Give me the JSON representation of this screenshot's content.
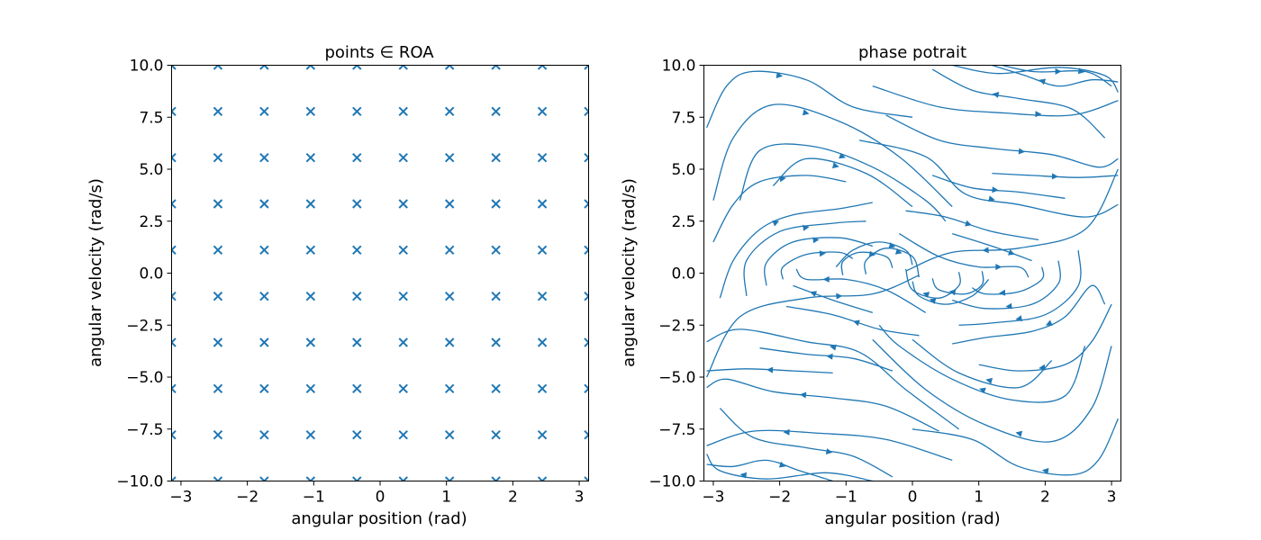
{
  "figure": {
    "background": "#ffffff"
  },
  "chart_data": [
    {
      "type": "scatter",
      "title": "points ∈ ROA",
      "xlabel": "angular position (rad)",
      "ylabel": "angular velocity (rad/s)",
      "xlim": [
        -3.1416,
        3.1416
      ],
      "ylim": [
        -10,
        10
      ],
      "xticks": [
        -3,
        -2,
        -1,
        0,
        1,
        2,
        3
      ],
      "xtick_labels": [
        "−3",
        "−2",
        "−1",
        "0",
        "1",
        "2",
        "3"
      ],
      "yticks": [
        10,
        7.5,
        5,
        2.5,
        0,
        -2.5,
        -5,
        -7.5,
        -10
      ],
      "ytick_labels": [
        "10.0",
        "7.5",
        "5.0",
        "2.5",
        "0.0",
        "−2.5",
        "−5.0",
        "−7.5",
        "−10.0"
      ],
      "marker": "x",
      "color": "#1f77b4",
      "grid": false,
      "x_grid": [
        -3.1416,
        -2.4435,
        -1.7453,
        -1.0472,
        -0.3491,
        0.3491,
        1.0472,
        1.7453,
        2.4435,
        3.1416
      ],
      "y_grid": [
        -10,
        -7.7778,
        -5.5556,
        -3.3333,
        -1.1111,
        1.1111,
        3.3333,
        5.5556,
        7.7778,
        10
      ]
    },
    {
      "type": "streamplot",
      "title": "phase potrait",
      "xlabel": "angular position (rad)",
      "ylabel": "angular velocity (rad/s)",
      "xlim": [
        -3.1416,
        3.1416
      ],
      "ylim": [
        -10,
        10
      ],
      "xticks": [
        -3,
        -2,
        -1,
        0,
        1,
        2,
        3
      ],
      "xtick_labels": [
        "−3",
        "−2",
        "−1",
        "0",
        "1",
        "2",
        "3"
      ],
      "yticks": [
        10,
        7.5,
        5,
        2.5,
        0,
        -2.5,
        -5,
        -7.5,
        -10
      ],
      "ytick_labels": [
        "10.0",
        "7.5",
        "5.0",
        "2.5",
        "0.0",
        "−2.5",
        "−5.0",
        "−7.5",
        "−10.0"
      ],
      "color": "#1f77b4",
      "grid": false,
      "streamlines": [
        [
          [
            -3.1,
            -5
          ],
          [
            -2.6,
            -2.1
          ],
          [
            -1.6,
            -1.2
          ],
          [
            -0.6,
            -1
          ],
          [
            0.1,
            -0.1
          ]
        ],
        [
          [
            3.1,
            5
          ],
          [
            2.6,
            2.1
          ],
          [
            1.6,
            1.2
          ],
          [
            0.6,
            1
          ],
          [
            -0.1,
            0.1
          ]
        ],
        [
          [
            -3.0,
            1.5
          ],
          [
            -2.7,
            3.3
          ],
          [
            -2.3,
            4.4
          ],
          [
            -1.6,
            4.7
          ],
          [
            -1.0,
            4.4
          ]
        ],
        [
          [
            -2.9,
            -1.2
          ],
          [
            -2.7,
            0.6
          ],
          [
            -2.3,
            2.1
          ],
          [
            -1.8,
            2.8
          ],
          [
            -1.1,
            3.1
          ],
          [
            -0.6,
            3.4
          ]
        ],
        [
          [
            -2.5,
            -1.1
          ],
          [
            -2.5,
            0.6
          ],
          [
            -2.0,
            2.0
          ],
          [
            -1.2,
            2.4
          ],
          [
            -0.7,
            2.5
          ]
        ],
        [
          [
            -2.2,
            -0.6
          ],
          [
            -2.2,
            0.5
          ],
          [
            -1.8,
            1.5
          ],
          [
            -1.1,
            1.7
          ],
          [
            -0.6,
            1.3
          ]
        ],
        [
          [
            -1.95,
            -0.3
          ],
          [
            -1.95,
            0.3
          ],
          [
            -1.6,
            0.9
          ],
          [
            -1.1,
            1.0
          ],
          [
            -0.9,
            0.7
          ]
        ],
        [
          [
            -1.05,
            -0.1
          ],
          [
            -1.05,
            0.55
          ],
          [
            -0.8,
            1.0
          ],
          [
            -0.4,
            0.8
          ],
          [
            -0.3,
            0.25
          ]
        ],
        [
          [
            -0.7,
            -0.05
          ],
          [
            -0.7,
            0.6
          ],
          [
            -0.4,
            1.2
          ],
          [
            0.0,
            0.8
          ],
          [
            0.1,
            -0.2
          ]
        ],
        [
          [
            -1.15,
            0.3
          ],
          [
            -0.9,
            1.1
          ],
          [
            -0.5,
            1.5
          ],
          [
            -0.1,
            1.1
          ],
          [
            0.0,
            0.4
          ]
        ],
        [
          [
            2.9,
            -1.5
          ],
          [
            2.7,
            -0.6
          ],
          [
            2.3,
            -2.1
          ],
          [
            1.8,
            -2.8
          ],
          [
            1.1,
            -3.1
          ],
          [
            0.6,
            -3.4
          ]
        ],
        [
          [
            2.5,
            1.1
          ],
          [
            2.5,
            -0.6
          ],
          [
            2.0,
            -2.0
          ],
          [
            1.2,
            -2.4
          ],
          [
            0.7,
            -2.5
          ]
        ],
        [
          [
            2.2,
            0.6
          ],
          [
            2.2,
            -0.5
          ],
          [
            1.8,
            -1.5
          ],
          [
            1.1,
            -1.7
          ],
          [
            0.6,
            -1.3
          ]
        ],
        [
          [
            1.95,
            0.3
          ],
          [
            1.95,
            -0.3
          ],
          [
            1.6,
            -0.9
          ],
          [
            1.1,
            -1.0
          ],
          [
            0.9,
            -0.7
          ]
        ],
        [
          [
            1.05,
            0.1
          ],
          [
            1.05,
            -0.55
          ],
          [
            0.8,
            -1.0
          ],
          [
            0.4,
            -0.8
          ],
          [
            0.3,
            -0.25
          ]
        ],
        [
          [
            0.7,
            0.05
          ],
          [
            0.7,
            -0.6
          ],
          [
            0.4,
            -1.2
          ],
          [
            0.0,
            -0.8
          ],
          [
            -0.1,
            0.2
          ]
        ],
        [
          [
            1.15,
            -0.3
          ],
          [
            0.9,
            -1.1
          ],
          [
            0.5,
            -1.5
          ],
          [
            0.1,
            -1.1
          ],
          [
            0.0,
            -0.4
          ]
        ],
        [
          [
            3.0,
            -1.5
          ],
          [
            2.7,
            -3.3
          ],
          [
            2.3,
            -4.4
          ],
          [
            1.6,
            -4.7
          ],
          [
            1.0,
            -4.4
          ]
        ],
        [
          [
            -3.1,
            7.0
          ],
          [
            -2.8,
            9.0
          ],
          [
            -2.4,
            9.7
          ],
          [
            -1.6,
            9.3
          ],
          [
            -0.9,
            8.0
          ],
          [
            0.0,
            7.5
          ]
        ],
        [
          [
            -3.0,
            3.5
          ],
          [
            -2.7,
            6.5
          ],
          [
            -2.1,
            8.1
          ],
          [
            -1.1,
            7.3
          ],
          [
            -0.2,
            5.6
          ],
          [
            0.6,
            3.2
          ]
        ],
        [
          [
            -2.6,
            3.5
          ],
          [
            -2.3,
            5.9
          ],
          [
            -1.5,
            6.1
          ],
          [
            -0.6,
            5.1
          ],
          [
            0.2,
            3.5
          ],
          [
            0.5,
            2.5
          ]
        ],
        [
          [
            -2.1,
            4.2
          ],
          [
            -1.6,
            5.5
          ],
          [
            -0.7,
            4.8
          ],
          [
            0.0,
            3.2
          ]
        ],
        [
          [
            -0.8,
            6.4
          ],
          [
            0.2,
            5.6
          ],
          [
            0.8,
            3.8
          ],
          [
            1.6,
            3.3
          ],
          [
            2.6,
            2.7
          ],
          [
            3.1,
            3.3
          ]
        ],
        [
          [
            -0.6,
            9.0
          ],
          [
            0.4,
            8.0
          ],
          [
            1.4,
            7.7
          ],
          [
            2.4,
            7.6
          ],
          [
            3.1,
            8.3
          ]
        ],
        [
          [
            0.6,
            10.0
          ],
          [
            1.3,
            9.6
          ],
          [
            2.2,
            9.9
          ],
          [
            2.9,
            9.5
          ],
          [
            3.1,
            8.7
          ]
        ],
        [
          [
            1.0,
            10.3
          ],
          [
            1.8,
            9.7
          ],
          [
            2.6,
            9.7
          ],
          [
            3.0,
            9.0
          ]
        ],
        [
          [
            -0.4,
            7.6
          ],
          [
            0.4,
            6.4
          ],
          [
            1.2,
            6.0
          ],
          [
            2.1,
            5.7
          ],
          [
            2.8,
            5.1
          ],
          [
            3.1,
            5.5
          ]
        ],
        [
          [
            1.2,
            4.8
          ],
          [
            1.8,
            4.7
          ],
          [
            2.5,
            4.6
          ],
          [
            3.1,
            4.7
          ]
        ],
        [
          [
            0.3,
            4.7
          ],
          [
            0.9,
            4.1
          ],
          [
            1.6,
            3.9
          ],
          [
            2.3,
            3.6
          ]
        ],
        [
          [
            -0.1,
            3.0
          ],
          [
            0.5,
            2.7
          ],
          [
            1.2,
            2.0
          ],
          [
            1.9,
            1.6
          ]
        ],
        [
          [
            0.6,
            1.9
          ],
          [
            1.2,
            1.3
          ],
          [
            1.8,
            0.6
          ]
        ],
        [
          [
            -0.2,
            1.9
          ],
          [
            0.4,
            0.8
          ],
          [
            1.0,
            0.3
          ],
          [
            1.6,
            0.3
          ],
          [
            1.75,
            -0.2
          ]
        ],
        [
          [
            0.7,
            -7.5
          ],
          [
            -0.1,
            -5.6
          ],
          [
            -0.8,
            -3.8
          ],
          [
            -1.6,
            -3.3
          ],
          [
            -2.6,
            -2.7
          ],
          [
            -3.1,
            -3.3
          ]
        ],
        [
          [
            0.6,
            -9.0
          ],
          [
            -0.4,
            -8.0
          ],
          [
            -1.4,
            -7.7
          ],
          [
            -2.4,
            -7.6
          ],
          [
            -3.1,
            -8.3
          ]
        ],
        [
          [
            -0.6,
            -10.0
          ],
          [
            -1.3,
            -9.6
          ],
          [
            -2.2,
            -9.9
          ],
          [
            -2.9,
            -9.5
          ],
          [
            -3.1,
            -8.7
          ]
        ],
        [
          [
            0.4,
            -7.6
          ],
          [
            -0.4,
            -6.4
          ],
          [
            -1.2,
            -6.0
          ],
          [
            -2.1,
            -5.7
          ],
          [
            -2.8,
            -5.1
          ],
          [
            -3.1,
            -5.5
          ]
        ],
        [
          [
            -1.2,
            -4.8
          ],
          [
            -1.8,
            -4.7
          ],
          [
            -2.5,
            -4.6
          ],
          [
            -3.1,
            -4.7
          ]
        ],
        [
          [
            -0.3,
            -4.7
          ],
          [
            -0.9,
            -4.1
          ],
          [
            -1.6,
            -3.9
          ],
          [
            -2.3,
            -3.6
          ]
        ],
        [
          [
            0.1,
            -3.0
          ],
          [
            -0.5,
            -2.7
          ],
          [
            -1.2,
            -2.0
          ],
          [
            -1.9,
            -1.6
          ]
        ],
        [
          [
            -0.6,
            -1.9
          ],
          [
            -1.2,
            -1.3
          ],
          [
            -1.8,
            -0.6
          ]
        ],
        [
          [
            0.2,
            -1.9
          ],
          [
            -0.4,
            -0.8
          ],
          [
            -1.0,
            -0.3
          ],
          [
            -1.6,
            -0.3
          ],
          [
            -1.75,
            0.2
          ]
        ],
        [
          [
            3.1,
            -7.0
          ],
          [
            2.8,
            -9.0
          ],
          [
            2.4,
            -9.7
          ],
          [
            1.6,
            -9.3
          ],
          [
            0.9,
            -8.0
          ],
          [
            0.0,
            -7.5
          ]
        ],
        [
          [
            3.0,
            -3.5
          ],
          [
            2.7,
            -6.5
          ],
          [
            2.1,
            -8.1
          ],
          [
            1.1,
            -7.3
          ],
          [
            0.2,
            -5.6
          ],
          [
            -0.6,
            -3.2
          ]
        ],
        [
          [
            2.6,
            -3.5
          ],
          [
            2.3,
            -5.9
          ],
          [
            1.5,
            -6.1
          ],
          [
            0.6,
            -5.1
          ],
          [
            -0.2,
            -3.5
          ],
          [
            -0.5,
            -2.5
          ]
        ],
        [
          [
            2.1,
            -4.2
          ],
          [
            1.6,
            -5.5
          ],
          [
            0.7,
            -4.8
          ],
          [
            0.0,
            -3.2
          ]
        ],
        [
          [
            -2.9,
            -6.5
          ],
          [
            -2.4,
            -7.9
          ],
          [
            -1.6,
            -8.4
          ],
          [
            -0.9,
            -8.8
          ],
          [
            -0.3,
            -9.8
          ]
        ],
        [
          [
            2.9,
            6.5
          ],
          [
            2.4,
            7.9
          ],
          [
            1.6,
            8.4
          ],
          [
            0.9,
            8.8
          ],
          [
            0.3,
            9.8
          ]
        ],
        [
          [
            -3.1,
            -9.2
          ],
          [
            -2.7,
            -9.3
          ],
          [
            -2.2,
            -9.0
          ],
          [
            -1.7,
            -9.5
          ],
          [
            -1.2,
            -10.0
          ]
        ],
        [
          [
            3.1,
            9.2
          ],
          [
            2.7,
            9.3
          ],
          [
            2.2,
            9.0
          ],
          [
            1.7,
            9.5
          ],
          [
            1.2,
            10.0
          ]
        ]
      ]
    }
  ]
}
